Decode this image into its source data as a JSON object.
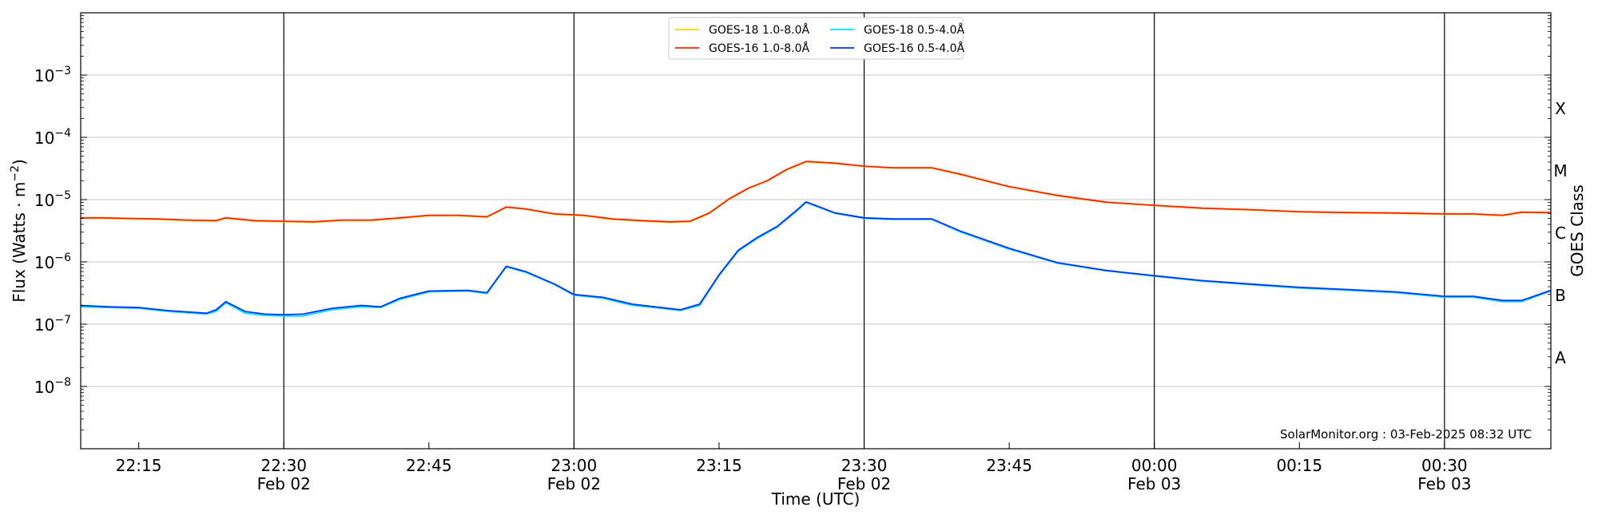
{
  "chart_data": {
    "type": "line",
    "xlabel": "Time (UTC)",
    "ylabel": "Flux (Watts · m⁻²)",
    "ylabel_right": "GOES Class",
    "yscale": "log",
    "ylim": [
      1e-09,
      0.01
    ],
    "xlim": [
      "2025-02-02 22:09",
      "2025-02-03 00:41"
    ],
    "grid": "horizontal at decades; vertical black lines at 30-minute marks",
    "legend_position": "top-center",
    "credit": "SolarMonitor.org : 03-Feb-2025 08:32 UTC",
    "y_tick_labels": [
      {
        "exp": "-3",
        "value": 0.001
      },
      {
        "exp": "-4",
        "value": 0.0001
      },
      {
        "exp": "-5",
        "value": 1e-05
      },
      {
        "exp": "-6",
        "value": 1e-06
      },
      {
        "exp": "-7",
        "value": 1e-07
      },
      {
        "exp": "-8",
        "value": 1e-08
      }
    ],
    "x_tick_labels": [
      {
        "time": "2025-02-02 22:15",
        "line1": "22:15",
        "line2": ""
      },
      {
        "time": "2025-02-02 22:30",
        "line1": "22:30",
        "line2": "Feb 02"
      },
      {
        "time": "2025-02-02 22:45",
        "line1": "22:45",
        "line2": ""
      },
      {
        "time": "2025-02-02 23:00",
        "line1": "23:00",
        "line2": "Feb 02"
      },
      {
        "time": "2025-02-02 23:15",
        "line1": "23:15",
        "line2": ""
      },
      {
        "time": "2025-02-02 23:30",
        "line1": "23:30",
        "line2": "Feb 02"
      },
      {
        "time": "2025-02-02 23:45",
        "line1": "23:45",
        "line2": ""
      },
      {
        "time": "2025-02-03 00:00",
        "line1": "00:00",
        "line2": "Feb 03"
      },
      {
        "time": "2025-02-03 00:15",
        "line1": "00:15",
        "line2": ""
      },
      {
        "time": "2025-02-03 00:30",
        "line1": "00:30",
        "line2": "Feb 03"
      }
    ],
    "class_labels": [
      {
        "label": "X",
        "value": 0.0003
      },
      {
        "label": "M",
        "value": 3e-05
      },
      {
        "label": "C",
        "value": 3e-06
      },
      {
        "label": "B",
        "value": 3e-07
      },
      {
        "label": "A",
        "value": 3e-08
      }
    ],
    "series": [
      {
        "name": "GOES-18 1.0-8.0Å",
        "color": "#FFD700",
        "x": [
          "2025-02-02 22:09",
          "2025-02-02 22:11",
          "2025-02-02 22:14",
          "2025-02-02 22:17",
          "2025-02-02 22:20",
          "2025-02-02 22:23",
          "2025-02-02 22:24",
          "2025-02-02 22:27",
          "2025-02-02 22:30",
          "2025-02-02 22:33",
          "2025-02-02 22:36",
          "2025-02-02 22:39",
          "2025-02-02 22:42",
          "2025-02-02 22:45",
          "2025-02-02 22:48",
          "2025-02-02 22:51",
          "2025-02-02 22:53",
          "2025-02-02 22:55",
          "2025-02-02 22:58",
          "2025-02-02 23:01",
          "2025-02-02 23:04",
          "2025-02-02 23:07",
          "2025-02-02 23:10",
          "2025-02-02 23:12",
          "2025-02-02 23:14",
          "2025-02-02 23:16",
          "2025-02-02 23:18",
          "2025-02-02 23:20",
          "2025-02-02 23:22",
          "2025-02-02 23:24",
          "2025-02-02 23:27",
          "2025-02-02 23:30",
          "2025-02-02 23:33",
          "2025-02-02 23:37",
          "2025-02-02 23:40",
          "2025-02-02 23:45",
          "2025-02-02 23:50",
          "2025-02-02 23:55",
          "2025-02-03 00:00",
          "2025-02-03 00:05",
          "2025-02-03 00:10",
          "2025-02-03 00:15",
          "2025-02-03 00:20",
          "2025-02-03 00:25",
          "2025-02-03 00:30",
          "2025-02-03 00:33",
          "2025-02-03 00:36",
          "2025-02-03 00:38",
          "2025-02-03 00:41"
        ],
        "values": [
          5e-06,
          5e-06,
          4.9e-06,
          4.8e-06,
          4.6e-06,
          4.5e-06,
          5e-06,
          4.5e-06,
          4.4e-06,
          4.3e-06,
          4.6e-06,
          4.6e-06,
          5e-06,
          5.5e-06,
          5.5e-06,
          5.2e-06,
          7.5e-06,
          7e-06,
          5.8e-06,
          5.5e-06,
          4.8e-06,
          4.5e-06,
          4.3e-06,
          4.4e-06,
          6e-06,
          1e-05,
          1.5e-05,
          2e-05,
          3e-05,
          4e-05,
          3.8e-05,
          3.4e-05,
          3.2e-05,
          3.2e-05,
          2.5e-05,
          1.6e-05,
          1.15e-05,
          9e-06,
          8e-06,
          7.2e-06,
          6.8e-06,
          6.3e-06,
          6.1e-06,
          6e-06,
          5.8e-06,
          5.8e-06,
          5.5e-06,
          6.2e-06,
          6.1e-06
        ]
      },
      {
        "name": "GOES-16 1.0-8.0Å",
        "color": "#FF2200",
        "x": [
          "2025-02-02 22:09",
          "2025-02-02 22:11",
          "2025-02-02 22:14",
          "2025-02-02 22:17",
          "2025-02-02 22:20",
          "2025-02-02 22:23",
          "2025-02-02 22:24",
          "2025-02-02 22:27",
          "2025-02-02 22:30",
          "2025-02-02 22:33",
          "2025-02-02 22:36",
          "2025-02-02 22:39",
          "2025-02-02 22:42",
          "2025-02-02 22:45",
          "2025-02-02 22:48",
          "2025-02-02 22:51",
          "2025-02-02 22:53",
          "2025-02-02 22:55",
          "2025-02-02 22:58",
          "2025-02-02 23:01",
          "2025-02-02 23:04",
          "2025-02-02 23:07",
          "2025-02-02 23:10",
          "2025-02-02 23:12",
          "2025-02-02 23:14",
          "2025-02-02 23:16",
          "2025-02-02 23:18",
          "2025-02-02 23:20",
          "2025-02-02 23:22",
          "2025-02-02 23:24",
          "2025-02-02 23:27",
          "2025-02-02 23:30",
          "2025-02-02 23:33",
          "2025-02-02 23:37",
          "2025-02-02 23:40",
          "2025-02-02 23:45",
          "2025-02-02 23:50",
          "2025-02-02 23:55",
          "2025-02-03 00:00",
          "2025-02-03 00:05",
          "2025-02-03 00:10",
          "2025-02-03 00:15",
          "2025-02-03 00:20",
          "2025-02-03 00:25",
          "2025-02-03 00:30",
          "2025-02-03 00:33",
          "2025-02-03 00:36",
          "2025-02-03 00:38",
          "2025-02-03 00:41"
        ],
        "values": [
          5.1e-06,
          5.1e-06,
          5e-06,
          4.9e-06,
          4.7e-06,
          4.6e-06,
          5.1e-06,
          4.6e-06,
          4.5e-06,
          4.4e-06,
          4.7e-06,
          4.7e-06,
          5.1e-06,
          5.6e-06,
          5.6e-06,
          5.3e-06,
          7.6e-06,
          7.1e-06,
          5.9e-06,
          5.6e-06,
          4.9e-06,
          4.6e-06,
          4.4e-06,
          4.5e-06,
          6.1e-06,
          1.02e-05,
          1.52e-05,
          2.02e-05,
          3.05e-05,
          4.1e-05,
          3.85e-05,
          3.45e-05,
          3.25e-05,
          3.25e-05,
          2.55e-05,
          1.62e-05,
          1.17e-05,
          9.1e-06,
          8.1e-06,
          7.3e-06,
          6.9e-06,
          6.4e-06,
          6.2e-06,
          6.1e-06,
          5.9e-06,
          5.9e-06,
          5.6e-06,
          6.3e-06,
          6.2e-06
        ]
      },
      {
        "name": "GOES-18 0.5-4.0Å",
        "color": "#00E5FF",
        "x": [
          "2025-02-02 22:09",
          "2025-02-02 22:12",
          "2025-02-02 22:15",
          "2025-02-02 22:18",
          "2025-02-02 22:22",
          "2025-02-02 22:23",
          "2025-02-02 22:24",
          "2025-02-02 22:26",
          "2025-02-02 22:28",
          "2025-02-02 22:30",
          "2025-02-02 22:32",
          "2025-02-02 22:35",
          "2025-02-02 22:38",
          "2025-02-02 22:40",
          "2025-02-02 22:42",
          "2025-02-02 22:45",
          "2025-02-02 22:49",
          "2025-02-02 22:51",
          "2025-02-02 22:53",
          "2025-02-02 22:55",
          "2025-02-02 22:58",
          "2025-02-02 23:00",
          "2025-02-02 23:03",
          "2025-02-02 23:06",
          "2025-02-02 23:09",
          "2025-02-02 23:11",
          "2025-02-02 23:13",
          "2025-02-02 23:15",
          "2025-02-02 23:17",
          "2025-02-02 23:19",
          "2025-02-02 23:21",
          "2025-02-02 23:23",
          "2025-02-02 23:24",
          "2025-02-02 23:27",
          "2025-02-02 23:30",
          "2025-02-02 23:33",
          "2025-02-02 23:37",
          "2025-02-02 23:40",
          "2025-02-02 23:45",
          "2025-02-02 23:50",
          "2025-02-02 23:55",
          "2025-02-03 00:00",
          "2025-02-03 00:05",
          "2025-02-03 00:10",
          "2025-02-03 00:15",
          "2025-02-03 00:20",
          "2025-02-03 00:25",
          "2025-02-03 00:30",
          "2025-02-03 00:33",
          "2025-02-03 00:36",
          "2025-02-03 00:38",
          "2025-02-03 00:41"
        ],
        "values": [
          1.9e-07,
          1.85e-07,
          1.8e-07,
          1.6e-07,
          1.45e-07,
          1.6e-07,
          2.2e-07,
          1.5e-07,
          1.38e-07,
          1.35e-07,
          1.35e-07,
          1.7e-07,
          1.9e-07,
          1.85e-07,
          2.5e-07,
          3.3e-07,
          3.4e-07,
          3.1e-07,
          8.3e-07,
          6.8e-07,
          4.3e-07,
          2.9e-07,
          2.6e-07,
          2e-07,
          1.8e-07,
          1.65e-07,
          2e-07,
          6e-07,
          1.5e-06,
          2.4e-06,
          3.6e-06,
          6.5e-06,
          9e-06,
          6e-06,
          5e-06,
          4.8e-06,
          4.8e-06,
          3e-06,
          1.6e-06,
          9.5e-07,
          7.2e-07,
          5.9e-07,
          4.9e-07,
          4.3e-07,
          3.8e-07,
          3.5e-07,
          3.2e-07,
          2.7e-07,
          2.7e-07,
          2.3e-07,
          2.3e-07,
          3.4e-07
        ]
      },
      {
        "name": "GOES-16 0.5-4.0Å",
        "color": "#0033FF",
        "x": [
          "2025-02-02 22:09",
          "2025-02-02 22:12",
          "2025-02-02 22:15",
          "2025-02-02 22:18",
          "2025-02-02 22:22",
          "2025-02-02 22:23",
          "2025-02-02 22:24",
          "2025-02-02 22:26",
          "2025-02-02 22:28",
          "2025-02-02 22:30",
          "2025-02-02 22:32",
          "2025-02-02 22:35",
          "2025-02-02 22:38",
          "2025-02-02 22:40",
          "2025-02-02 22:42",
          "2025-02-02 22:45",
          "2025-02-02 22:49",
          "2025-02-02 22:51",
          "2025-02-02 22:53",
          "2025-02-02 22:55",
          "2025-02-02 22:58",
          "2025-02-02 23:00",
          "2025-02-02 23:03",
          "2025-02-02 23:06",
          "2025-02-02 23:09",
          "2025-02-02 23:11",
          "2025-02-02 23:13",
          "2025-02-02 23:15",
          "2025-02-02 23:17",
          "2025-02-02 23:19",
          "2025-02-02 23:21",
          "2025-02-02 23:23",
          "2025-02-02 23:24",
          "2025-02-02 23:27",
          "2025-02-02 23:30",
          "2025-02-02 23:33",
          "2025-02-02 23:37",
          "2025-02-02 23:40",
          "2025-02-02 23:45",
          "2025-02-02 23:50",
          "2025-02-02 23:55",
          "2025-02-03 00:00",
          "2025-02-03 00:05",
          "2025-02-03 00:10",
          "2025-02-03 00:15",
          "2025-02-03 00:20",
          "2025-02-03 00:25",
          "2025-02-03 00:30",
          "2025-02-03 00:33",
          "2025-02-03 00:36",
          "2025-02-03 00:38",
          "2025-02-03 00:41"
        ],
        "values": [
          2e-07,
          1.9e-07,
          1.85e-07,
          1.65e-07,
          1.5e-07,
          1.7e-07,
          2.3e-07,
          1.6e-07,
          1.45e-07,
          1.42e-07,
          1.45e-07,
          1.8e-07,
          2e-07,
          1.9e-07,
          2.6e-07,
          3.4e-07,
          3.5e-07,
          3.2e-07,
          8.5e-07,
          7e-07,
          4.4e-07,
          3e-07,
          2.7e-07,
          2.1e-07,
          1.85e-07,
          1.7e-07,
          2.1e-07,
          6.2e-07,
          1.55e-06,
          2.5e-06,
          3.7e-06,
          6.7e-06,
          9.2e-06,
          6.1e-06,
          5.1e-06,
          4.9e-06,
          4.9e-06,
          3.1e-06,
          1.65e-06,
          9.7e-07,
          7.3e-07,
          6e-07,
          5e-07,
          4.4e-07,
          3.9e-07,
          3.6e-07,
          3.3e-07,
          2.8e-07,
          2.8e-07,
          2.4e-07,
          2.4e-07,
          3.5e-07
        ]
      }
    ]
  }
}
